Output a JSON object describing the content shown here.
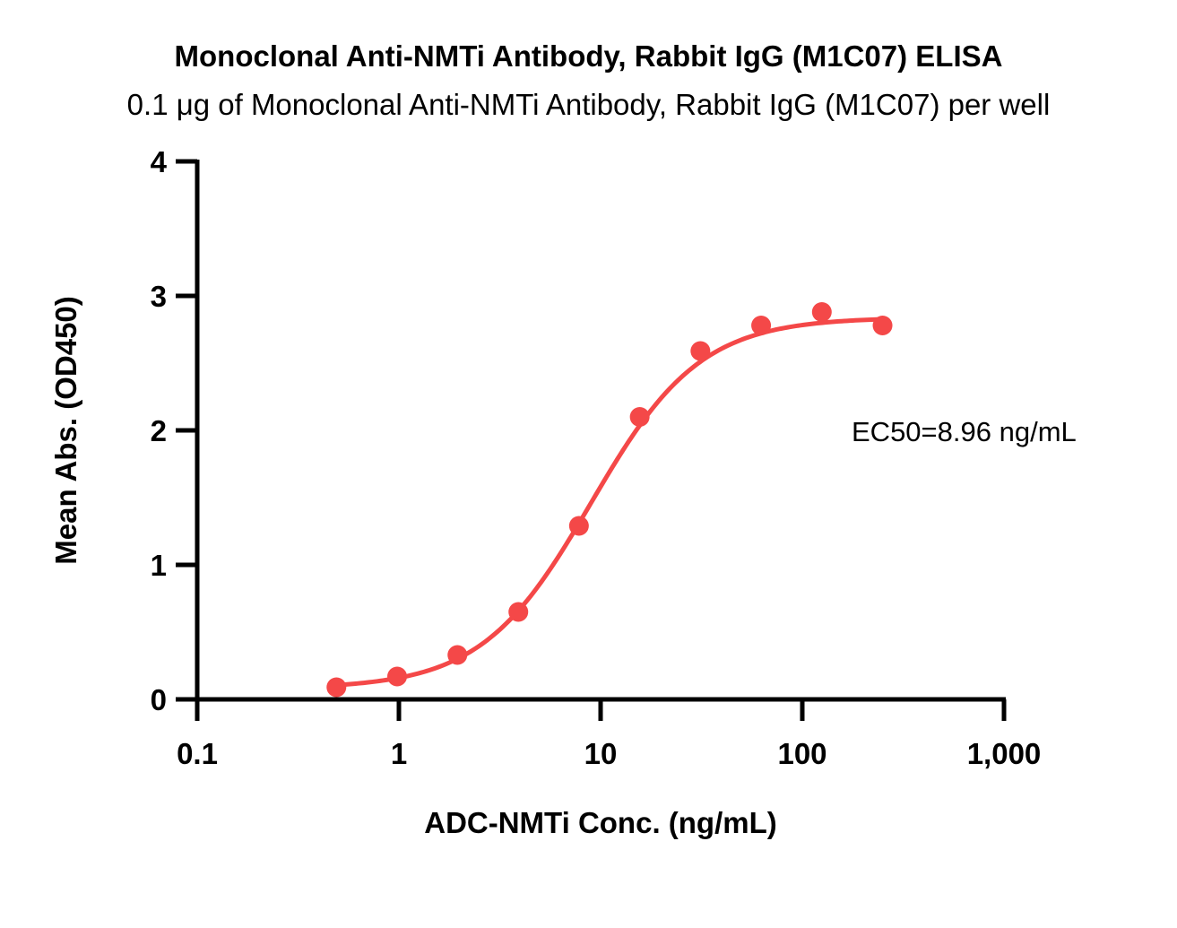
{
  "chart_data": {
    "type": "scatter",
    "title": "Monoclonal Anti-NMTi Antibody, Rabbit IgG (M1C07) ELISA",
    "subtitle": "0.1 μg of Monoclonal Anti-NMTi Antibody, Rabbit IgG (M1C07) per well",
    "xlabel": "ADC-NMTi Conc. (ng/mL)",
    "ylabel": "Mean Abs. (OD450)",
    "x_scale": "log",
    "xlim": [
      0.1,
      1000
    ],
    "ylim": [
      0,
      4
    ],
    "x_ticks": [
      0.1,
      1,
      10,
      100,
      1000
    ],
    "x_tick_labels": [
      "0.1",
      "1",
      "10",
      "100",
      "1,000"
    ],
    "y_ticks": [
      0,
      1,
      2,
      3,
      4
    ],
    "y_tick_labels": [
      "0",
      "1",
      "2",
      "3",
      "4"
    ],
    "grid": false,
    "series": [
      {
        "color": "#f44848",
        "x": [
          0.49,
          0.98,
          1.95,
          3.91,
          7.81,
          15.63,
          31.25,
          62.5,
          125,
          250
        ],
        "y": [
          0.09,
          0.17,
          0.33,
          0.65,
          1.29,
          2.1,
          2.59,
          2.78,
          2.88,
          2.78
        ],
        "fit": "sigmoidal 4PL",
        "fit_params": {
          "bottom": 0.08,
          "top": 2.84,
          "ec50": 8.96,
          "hill": 1.6
        }
      }
    ],
    "annotations": [
      {
        "text": "EC50=8.96 ng/mL"
      }
    ]
  }
}
